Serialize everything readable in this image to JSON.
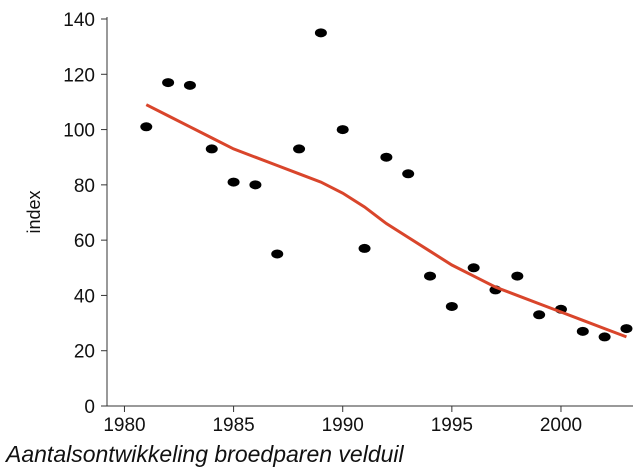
{
  "chart_data": {
    "type": "scatter",
    "ylabel": "index",
    "caption": "Aantalsontwikkeling broedparen velduil",
    "x": [
      1981,
      1982,
      1983,
      1984,
      1985,
      1986,
      1987,
      1988,
      1989,
      1990,
      1991,
      1992,
      1993,
      1994,
      1995,
      1996,
      1997,
      1998,
      1999,
      2000,
      2001,
      2002,
      2003
    ],
    "series": [
      {
        "color": "#000000",
        "mode": "markers",
        "values": [
          101,
          117,
          116,
          93,
          81,
          80,
          55,
          93,
          135,
          100,
          57,
          90,
          84,
          47,
          36,
          50,
          42,
          47,
          33,
          35,
          27,
          25,
          28
        ]
      },
      {
        "color": "#d9452b",
        "mode": "line",
        "values": [
          109,
          105,
          101,
          97,
          93,
          90,
          87,
          84,
          81,
          77,
          72,
          66,
          61,
          56,
          51,
          47,
          43,
          40,
          37,
          34,
          31,
          28,
          25
        ]
      }
    ],
    "xlim": [
      1979.2,
      2003.3
    ],
    "ylim": [
      0,
      140
    ],
    "xticks": [
      1980,
      1985,
      1990,
      1995,
      2000
    ],
    "yticks": [
      0,
      20,
      40,
      60,
      80,
      100,
      120,
      140
    ]
  }
}
